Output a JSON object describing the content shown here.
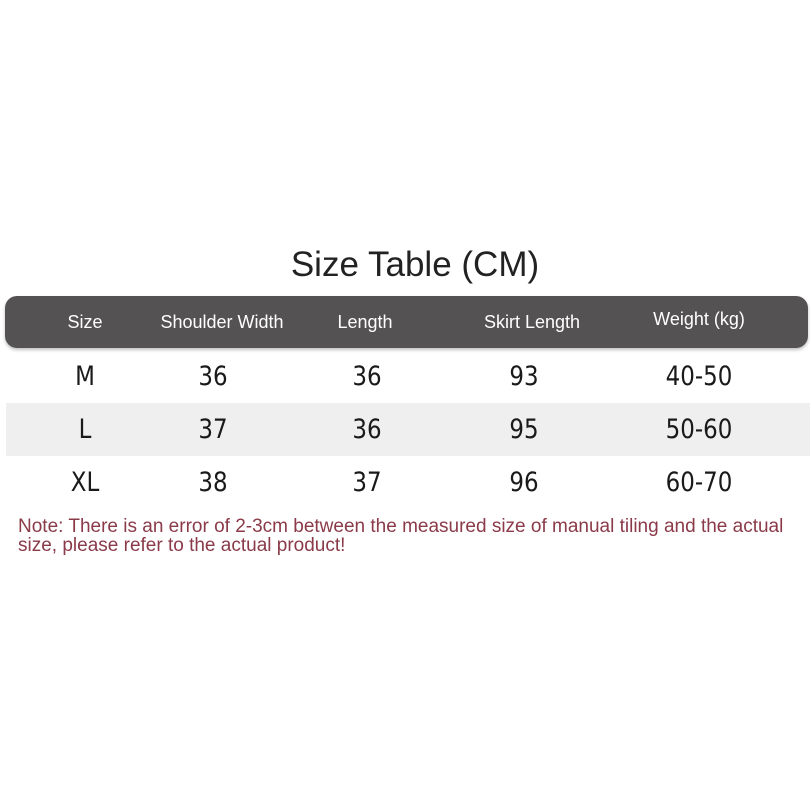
{
  "title": "Size Table (CM)",
  "table": {
    "headers": [
      "Size",
      "Shoulder Width",
      "Length",
      "Skirt Length",
      "Weight (kg)"
    ],
    "rows": [
      [
        "M",
        "36",
        "36",
        "93",
        "40-50"
      ],
      [
        "L",
        "37",
        "36",
        "95",
        "50-60"
      ],
      [
        "XL",
        "38",
        "37",
        "96",
        "60-70"
      ]
    ]
  },
  "note": "Note: There is an error of 2-3cm between the measured size of manual tiling and the actual size, please refer to the actual product!",
  "colors": {
    "header_bg": "#545252",
    "alt_row_bg": "#efefef",
    "note_text": "#8a3a48"
  }
}
